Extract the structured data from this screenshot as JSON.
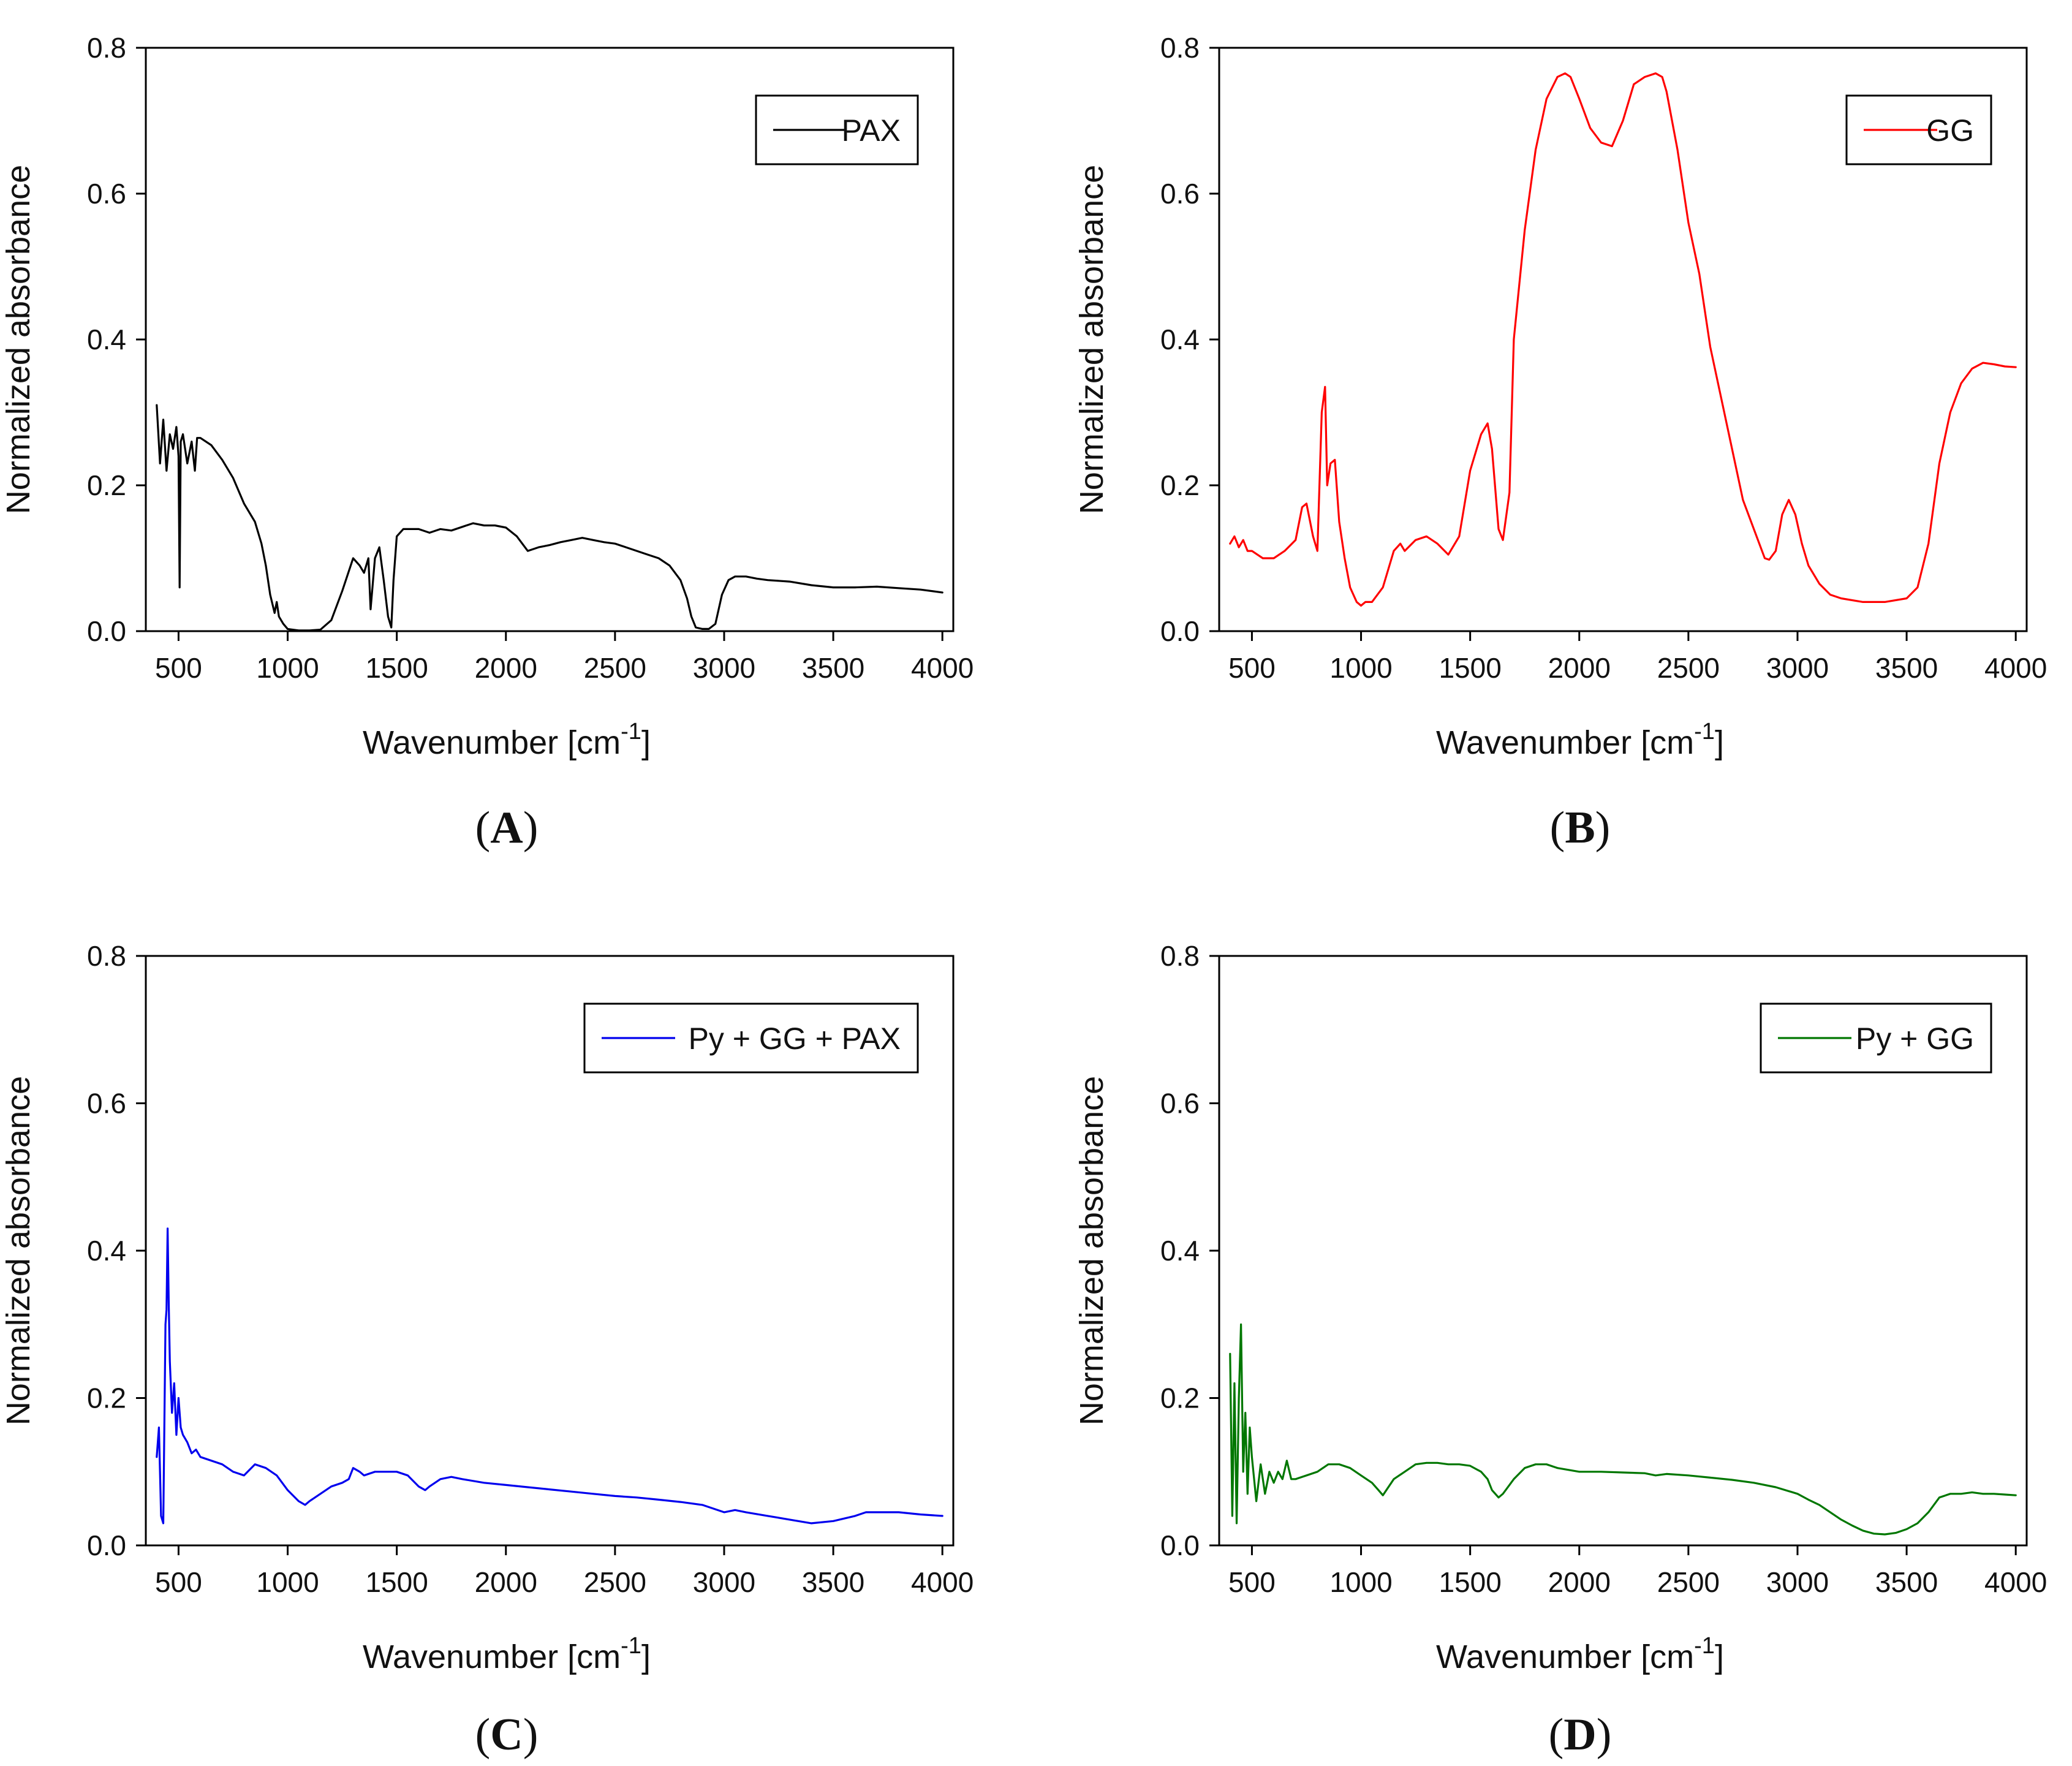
{
  "figure": {
    "panel_count": 4
  },
  "chart_data": [
    {
      "id": "A",
      "panel_label": "A",
      "type": "line",
      "xlabel": "Wavenumber [cm",
      "xlabel_sup": "-1",
      "xlabel_close": "]",
      "ylabel": "Normalized absorbance",
      "xlim": [
        350,
        4050
      ],
      "ylim": [
        0,
        0.8
      ],
      "x_ticks": [
        "500",
        "1000",
        "1500",
        "2000",
        "2500",
        "3000",
        "3500",
        "4000"
      ],
      "y_ticks": [
        "0.0",
        "0.2",
        "0.4",
        "0.6",
        "0.8"
      ],
      "legend": {
        "position": "top-right",
        "label": "PAX"
      },
      "series": [
        {
          "name": "PAX",
          "color": "#000000",
          "x": [
            400,
            415,
            430,
            445,
            460,
            475,
            490,
            500,
            505,
            510,
            520,
            540,
            560,
            575,
            585,
            600,
            650,
            700,
            750,
            800,
            850,
            880,
            900,
            920,
            940,
            950,
            960,
            980,
            1000,
            1050,
            1100,
            1150,
            1200,
            1250,
            1300,
            1330,
            1350,
            1370,
            1380,
            1400,
            1420,
            1440,
            1460,
            1475,
            1485,
            1500,
            1530,
            1570,
            1600,
            1650,
            1700,
            1750,
            1800,
            1850,
            1900,
            1950,
            2000,
            2050,
            2100,
            2150,
            2200,
            2250,
            2300,
            2350,
            2400,
            2450,
            2500,
            2550,
            2600,
            2650,
            2700,
            2750,
            2800,
            2830,
            2850,
            2870,
            2900,
            2930,
            2960,
            2990,
            3020,
            3050,
            3100,
            3150,
            3200,
            3300,
            3400,
            3500,
            3600,
            3700,
            3800,
            3900,
            4000
          ],
          "y": [
            0.31,
            0.23,
            0.29,
            0.22,
            0.27,
            0.25,
            0.28,
            0.24,
            0.06,
            0.26,
            0.27,
            0.23,
            0.26,
            0.22,
            0.265,
            0.265,
            0.255,
            0.235,
            0.21,
            0.175,
            0.15,
            0.12,
            0.09,
            0.05,
            0.025,
            0.04,
            0.02,
            0.01,
            0.003,
            0.001,
            0.001,
            0.002,
            0.015,
            0.055,
            0.1,
            0.09,
            0.08,
            0.1,
            0.03,
            0.1,
            0.115,
            0.07,
            0.02,
            0.005,
            0.07,
            0.13,
            0.14,
            0.14,
            0.14,
            0.135,
            0.14,
            0.138,
            0.143,
            0.148,
            0.145,
            0.145,
            0.142,
            0.13,
            0.11,
            0.115,
            0.118,
            0.122,
            0.125,
            0.128,
            0.125,
            0.122,
            0.12,
            0.115,
            0.11,
            0.105,
            0.1,
            0.09,
            0.07,
            0.045,
            0.02,
            0.005,
            0.003,
            0.003,
            0.01,
            0.05,
            0.07,
            0.075,
            0.075,
            0.072,
            0.07,
            0.068,
            0.063,
            0.06,
            0.06,
            0.061,
            0.059,
            0.057,
            0.053
          ]
        }
      ]
    },
    {
      "id": "B",
      "panel_label": "B",
      "type": "line",
      "xlabel": "Wavenumber [cm",
      "xlabel_sup": "-1",
      "xlabel_close": "]",
      "ylabel": "Normalized absorbance",
      "xlim": [
        350,
        4050
      ],
      "ylim": [
        0,
        0.8
      ],
      "x_ticks": [
        "500",
        "1000",
        "1500",
        "2000",
        "2500",
        "3000",
        "3500",
        "4000"
      ],
      "y_ticks": [
        "0.0",
        "0.2",
        "0.4",
        "0.6",
        "0.8"
      ],
      "legend": {
        "position": "top-right",
        "label": "GG"
      },
      "series": [
        {
          "name": "GG",
          "color": "#ff0000",
          "x": [
            400,
            420,
            440,
            460,
            480,
            500,
            550,
            600,
            650,
            700,
            730,
            750,
            780,
            800,
            820,
            835,
            845,
            860,
            880,
            900,
            925,
            950,
            980,
            1000,
            1020,
            1050,
            1100,
            1150,
            1180,
            1200,
            1250,
            1300,
            1350,
            1400,
            1450,
            1500,
            1550,
            1580,
            1600,
            1630,
            1650,
            1680,
            1700,
            1750,
            1800,
            1850,
            1900,
            1935,
            1960,
            2000,
            2050,
            2100,
            2150,
            2200,
            2250,
            2300,
            2350,
            2380,
            2400,
            2450,
            2500,
            2550,
            2600,
            2650,
            2700,
            2750,
            2800,
            2850,
            2870,
            2900,
            2930,
            2960,
            2990,
            3020,
            3050,
            3100,
            3150,
            3200,
            3300,
            3400,
            3500,
            3550,
            3600,
            3650,
            3700,
            3750,
            3800,
            3850,
            3900,
            3950,
            4000
          ],
          "y": [
            0.12,
            0.13,
            0.115,
            0.125,
            0.11,
            0.11,
            0.1,
            0.1,
            0.11,
            0.125,
            0.17,
            0.175,
            0.13,
            0.11,
            0.3,
            0.335,
            0.2,
            0.23,
            0.235,
            0.15,
            0.1,
            0.06,
            0.04,
            0.035,
            0.04,
            0.04,
            0.06,
            0.11,
            0.12,
            0.11,
            0.125,
            0.13,
            0.12,
            0.105,
            0.13,
            0.22,
            0.27,
            0.285,
            0.25,
            0.14,
            0.125,
            0.19,
            0.4,
            0.55,
            0.66,
            0.73,
            0.76,
            0.765,
            0.76,
            0.73,
            0.69,
            0.67,
            0.665,
            0.7,
            0.75,
            0.76,
            0.765,
            0.76,
            0.74,
            0.66,
            0.56,
            0.49,
            0.39,
            0.32,
            0.25,
            0.18,
            0.14,
            0.1,
            0.098,
            0.11,
            0.16,
            0.18,
            0.16,
            0.12,
            0.09,
            0.065,
            0.05,
            0.045,
            0.04,
            0.04,
            0.045,
            0.06,
            0.12,
            0.23,
            0.3,
            0.34,
            0.36,
            0.368,
            0.366,
            0.363,
            0.362
          ]
        }
      ]
    },
    {
      "id": "C",
      "panel_label": "C",
      "type": "line",
      "xlabel": "Wavenumber [cm",
      "xlabel_sup": "-1",
      "xlabel_close": "]",
      "ylabel": "Normalized absorbance",
      "xlim": [
        350,
        4050
      ],
      "ylim": [
        0,
        0.8
      ],
      "x_ticks": [
        "500",
        "1000",
        "1500",
        "2000",
        "2500",
        "3000",
        "3500",
        "4000"
      ],
      "y_ticks": [
        "0.0",
        "0.2",
        "0.4",
        "0.6",
        "0.8"
      ],
      "legend": {
        "position": "top-right",
        "label": "Py + GG + PAX"
      },
      "series": [
        {
          "name": "Py + GG + PAX",
          "color": "#0000ee",
          "x": [
            400,
            410,
            420,
            430,
            440,
            445,
            450,
            455,
            460,
            470,
            480,
            490,
            500,
            510,
            520,
            540,
            560,
            580,
            600,
            650,
            700,
            750,
            800,
            850,
            900,
            950,
            1000,
            1050,
            1080,
            1100,
            1150,
            1200,
            1250,
            1280,
            1300,
            1330,
            1350,
            1400,
            1450,
            1500,
            1550,
            1600,
            1630,
            1650,
            1700,
            1750,
            1800,
            1900,
            2000,
            2100,
            2200,
            2300,
            2400,
            2500,
            2600,
            2700,
            2800,
            2900,
            2950,
            3000,
            3050,
            3100,
            3200,
            3300,
            3400,
            3500,
            3600,
            3650,
            3700,
            3800,
            3900,
            4000
          ],
          "y": [
            0.12,
            0.16,
            0.04,
            0.03,
            0.3,
            0.32,
            0.43,
            0.33,
            0.25,
            0.18,
            0.22,
            0.15,
            0.2,
            0.16,
            0.15,
            0.14,
            0.125,
            0.13,
            0.12,
            0.115,
            0.11,
            0.1,
            0.095,
            0.11,
            0.105,
            0.095,
            0.075,
            0.06,
            0.055,
            0.06,
            0.07,
            0.08,
            0.085,
            0.09,
            0.105,
            0.1,
            0.095,
            0.1,
            0.1,
            0.1,
            0.095,
            0.08,
            0.075,
            0.08,
            0.09,
            0.093,
            0.09,
            0.085,
            0.082,
            0.079,
            0.076,
            0.073,
            0.07,
            0.067,
            0.065,
            0.062,
            0.059,
            0.055,
            0.05,
            0.045,
            0.048,
            0.045,
            0.04,
            0.035,
            0.03,
            0.033,
            0.04,
            0.045,
            0.045,
            0.045,
            0.042,
            0.04
          ]
        }
      ]
    },
    {
      "id": "D",
      "panel_label": "D",
      "type": "line",
      "xlabel": "Wavenumber [cm",
      "xlabel_sup": "-1",
      "xlabel_close": "]",
      "ylabel": "Normalized absorbance",
      "xlim": [
        350,
        4050
      ],
      "ylim": [
        0,
        0.8
      ],
      "x_ticks": [
        "500",
        "1000",
        "1500",
        "2000",
        "2500",
        "3000",
        "3500",
        "4000"
      ],
      "y_ticks": [
        "0.0",
        "0.2",
        "0.4",
        "0.6",
        "0.8"
      ],
      "legend": {
        "position": "top-right",
        "label": "Py + GG"
      },
      "series": [
        {
          "name": "Py + GG",
          "color": "#007700",
          "x": [
            400,
            410,
            420,
            430,
            440,
            450,
            460,
            470,
            480,
            490,
            500,
            520,
            540,
            560,
            580,
            600,
            620,
            640,
            660,
            680,
            700,
            750,
            800,
            850,
            900,
            950,
            1000,
            1050,
            1080,
            1100,
            1150,
            1200,
            1250,
            1300,
            1350,
            1400,
            1450,
            1500,
            1550,
            1580,
            1600,
            1630,
            1650,
            1700,
            1750,
            1800,
            1850,
            1900,
            2000,
            2100,
            2200,
            2300,
            2350,
            2400,
            2500,
            2600,
            2700,
            2800,
            2900,
            3000,
            3050,
            3100,
            3150,
            3200,
            3250,
            3300,
            3350,
            3400,
            3450,
            3500,
            3550,
            3600,
            3650,
            3700,
            3750,
            3800,
            3850,
            3900,
            3950,
            4000
          ],
          "y": [
            0.26,
            0.04,
            0.22,
            0.03,
            0.2,
            0.3,
            0.1,
            0.18,
            0.07,
            0.16,
            0.12,
            0.06,
            0.11,
            0.07,
            0.1,
            0.085,
            0.1,
            0.09,
            0.115,
            0.09,
            0.09,
            0.095,
            0.1,
            0.11,
            0.11,
            0.105,
            0.095,
            0.085,
            0.075,
            0.068,
            0.09,
            0.1,
            0.11,
            0.112,
            0.112,
            0.11,
            0.11,
            0.108,
            0.1,
            0.09,
            0.075,
            0.065,
            0.07,
            0.09,
            0.105,
            0.11,
            0.11,
            0.105,
            0.1,
            0.1,
            0.099,
            0.098,
            0.095,
            0.097,
            0.095,
            0.092,
            0.089,
            0.085,
            0.079,
            0.07,
            0.062,
            0.055,
            0.045,
            0.035,
            0.027,
            0.02,
            0.016,
            0.015,
            0.017,
            0.022,
            0.03,
            0.045,
            0.065,
            0.07,
            0.07,
            0.072,
            0.07,
            0.07,
            0.069,
            0.068
          ]
        }
      ]
    }
  ]
}
